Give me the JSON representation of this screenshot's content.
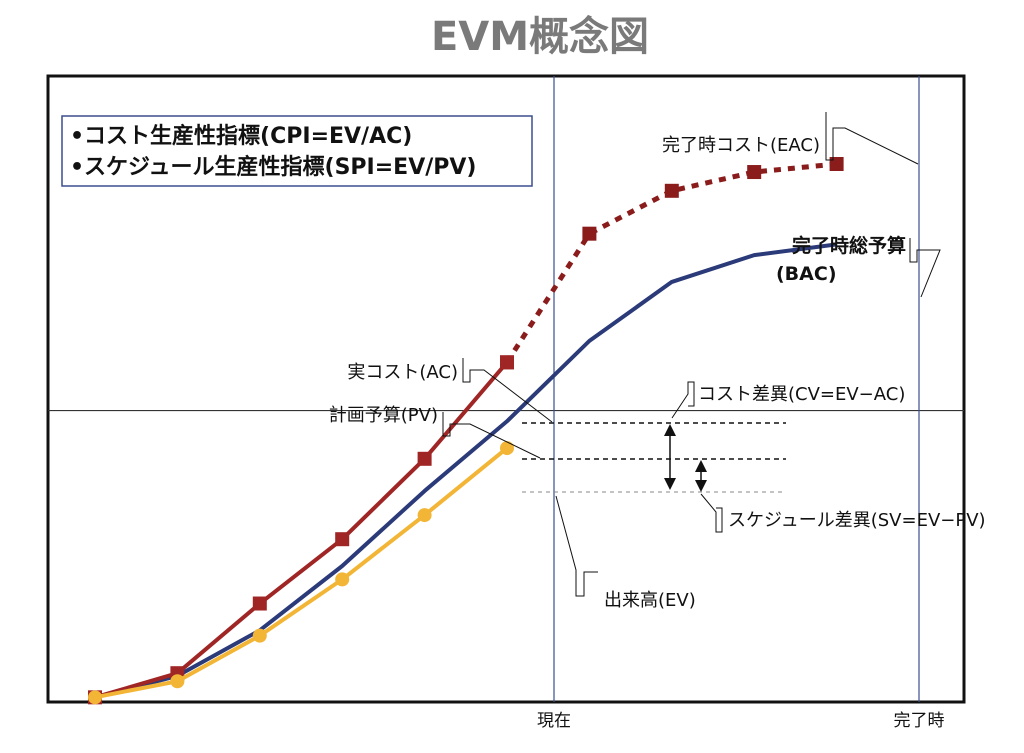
{
  "title": "EVM概念図",
  "legend": {
    "items": [
      "•コスト生産性指標(CPI=EV/AC)",
      "•スケジュール生産性指標(SPI=EV/PV)"
    ]
  },
  "axis": {
    "now_label": "現在",
    "end_label": "完了時"
  },
  "labels": {
    "eac": "完了時コスト(EAC)",
    "bac_line1": "完了時総予算",
    "bac_line2": "(BAC)",
    "ac": "実コスト(AC)",
    "pv": "計画予算(PV)",
    "cv": "コスト差異(CV=EV−AC)",
    "sv": "スケジュール差異(SV=EV−PV)",
    "ev": "出来高(EV)"
  },
  "colors": {
    "ac": "#a02525",
    "eac": "#8a1c1c",
    "pv": "#2b3a78",
    "ev": "#f2b536",
    "frame": "#111111",
    "vline": "#3b4f8f"
  },
  "chart_data": {
    "type": "line",
    "xlim": [
      0,
      10
    ],
    "ylim": [
      0,
      100
    ],
    "now_x": 5,
    "end_x": 10,
    "bac": 54,
    "series": [
      {
        "name": "AC",
        "style": "solid",
        "markers": "square",
        "points": [
          [
            0,
            0.5
          ],
          [
            1,
            5
          ],
          [
            2,
            18
          ],
          [
            3,
            30
          ],
          [
            4,
            45
          ],
          [
            5,
            63
          ]
        ]
      },
      {
        "name": "EAC",
        "style": "dotted",
        "markers": "square",
        "points": [
          [
            5,
            63
          ],
          [
            6,
            87
          ],
          [
            7,
            95
          ],
          [
            8,
            98.5
          ],
          [
            9,
            100
          ]
        ]
      },
      {
        "name": "PV",
        "style": "solid",
        "markers": "none",
        "points": [
          [
            0,
            0.5
          ],
          [
            1,
            4.5
          ],
          [
            2,
            13
          ],
          [
            3,
            25
          ],
          [
            4,
            39
          ],
          [
            5,
            52
          ],
          [
            6,
            67
          ],
          [
            7,
            78
          ],
          [
            8,
            83
          ],
          [
            9,
            85
          ]
        ]
      },
      {
        "name": "EV",
        "style": "solid",
        "markers": "circle",
        "points": [
          [
            0,
            0.5
          ],
          [
            1,
            3.5
          ],
          [
            2,
            12
          ],
          [
            3,
            22.5
          ],
          [
            4,
            34.5
          ],
          [
            5,
            47
          ]
        ]
      }
    ]
  }
}
